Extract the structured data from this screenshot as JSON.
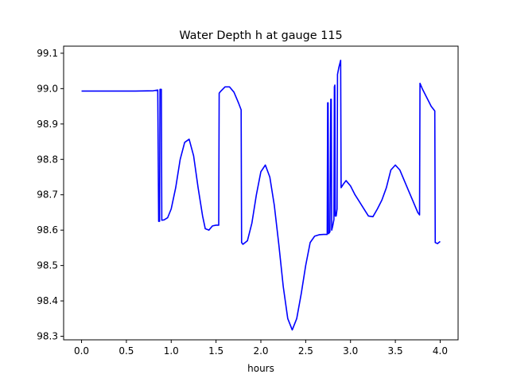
{
  "chart_data": {
    "type": "line",
    "title": "Water Depth h at gauge 115",
    "xlabel": "hours",
    "ylabel": "",
    "xlim": [
      -0.2,
      4.2
    ],
    "ylim": [
      98.29,
      99.12
    ],
    "grid": false,
    "legend": "none",
    "xticks": [
      0.0,
      0.5,
      1.0,
      1.5,
      2.0,
      2.5,
      3.0,
      3.5,
      4.0
    ],
    "xtick_labels": [
      "0.0",
      "0.5",
      "1.0",
      "1.5",
      "2.0",
      "2.5",
      "3.0",
      "3.5",
      "4.0"
    ],
    "yticks": [
      98.3,
      98.4,
      98.5,
      98.6,
      98.7,
      98.8,
      98.9,
      99.0,
      99.1
    ],
    "ytick_labels": [
      "98.3",
      "98.4",
      "98.5",
      "98.6",
      "98.7",
      "98.8",
      "98.9",
      "99.0",
      "99.1"
    ],
    "series": [
      {
        "color": "#0000ff",
        "points": [
          [
            0.0,
            98.993
          ],
          [
            0.3,
            98.993
          ],
          [
            0.6,
            98.993
          ],
          [
            0.8,
            98.994
          ],
          [
            0.85,
            98.996
          ],
          [
            0.86,
            98.625
          ],
          [
            0.87,
            98.625
          ],
          [
            0.875,
            98.998
          ],
          [
            0.88,
            98.998
          ],
          [
            0.89,
            98.998
          ],
          [
            0.895,
            98.628
          ],
          [
            0.92,
            98.629
          ],
          [
            0.96,
            98.635
          ],
          [
            1.0,
            98.66
          ],
          [
            1.05,
            98.72
          ],
          [
            1.1,
            98.8
          ],
          [
            1.15,
            98.848
          ],
          [
            1.2,
            98.857
          ],
          [
            1.25,
            98.81
          ],
          [
            1.3,
            98.72
          ],
          [
            1.35,
            98.64
          ],
          [
            1.38,
            98.604
          ],
          [
            1.42,
            98.6
          ],
          [
            1.46,
            98.612
          ],
          [
            1.5,
            98.614
          ],
          [
            1.53,
            98.614
          ],
          [
            1.535,
            98.987
          ],
          [
            1.55,
            98.992
          ],
          [
            1.6,
            99.005
          ],
          [
            1.65,
            99.005
          ],
          [
            1.7,
            98.99
          ],
          [
            1.75,
            98.96
          ],
          [
            1.78,
            98.94
          ],
          [
            1.785,
            98.565
          ],
          [
            1.8,
            98.56
          ],
          [
            1.85,
            98.57
          ],
          [
            1.9,
            98.62
          ],
          [
            1.95,
            98.7
          ],
          [
            2.0,
            98.765
          ],
          [
            2.05,
            98.784
          ],
          [
            2.1,
            98.75
          ],
          [
            2.15,
            98.67
          ],
          [
            2.2,
            98.56
          ],
          [
            2.25,
            98.44
          ],
          [
            2.3,
            98.35
          ],
          [
            2.35,
            98.318
          ],
          [
            2.4,
            98.35
          ],
          [
            2.45,
            98.42
          ],
          [
            2.5,
            98.5
          ],
          [
            2.55,
            98.565
          ],
          [
            2.6,
            98.583
          ],
          [
            2.65,
            98.587
          ],
          [
            2.7,
            98.588
          ],
          [
            2.74,
            98.588
          ],
          [
            2.745,
            98.96
          ],
          [
            2.75,
            98.96
          ],
          [
            2.755,
            98.59
          ],
          [
            2.77,
            98.595
          ],
          [
            2.78,
            98.97
          ],
          [
            2.785,
            98.97
          ],
          [
            2.79,
            98.6
          ],
          [
            2.8,
            98.61
          ],
          [
            2.815,
            98.63
          ],
          [
            2.82,
            99.005
          ],
          [
            2.825,
            99.01
          ],
          [
            2.83,
            98.64
          ],
          [
            2.84,
            98.64
          ],
          [
            2.85,
            98.66
          ],
          [
            2.855,
            99.04
          ],
          [
            2.87,
            99.06
          ],
          [
            2.89,
            99.08
          ],
          [
            2.895,
            98.72
          ],
          [
            2.92,
            98.73
          ],
          [
            2.95,
            98.74
          ],
          [
            3.0,
            98.725
          ],
          [
            3.05,
            98.7
          ],
          [
            3.1,
            98.68
          ],
          [
            3.15,
            98.66
          ],
          [
            3.2,
            98.64
          ],
          [
            3.25,
            98.638
          ],
          [
            3.3,
            98.66
          ],
          [
            3.35,
            98.685
          ],
          [
            3.4,
            98.72
          ],
          [
            3.45,
            98.77
          ],
          [
            3.5,
            98.784
          ],
          [
            3.55,
            98.77
          ],
          [
            3.6,
            98.74
          ],
          [
            3.65,
            98.71
          ],
          [
            3.7,
            98.68
          ],
          [
            3.75,
            98.65
          ],
          [
            3.77,
            98.643
          ],
          [
            3.775,
            99.015
          ],
          [
            3.8,
            99.0
          ],
          [
            3.85,
            98.975
          ],
          [
            3.9,
            98.95
          ],
          [
            3.94,
            98.937
          ],
          [
            3.945,
            98.565
          ],
          [
            3.97,
            98.562
          ],
          [
            4.0,
            98.568
          ]
        ]
      }
    ]
  }
}
